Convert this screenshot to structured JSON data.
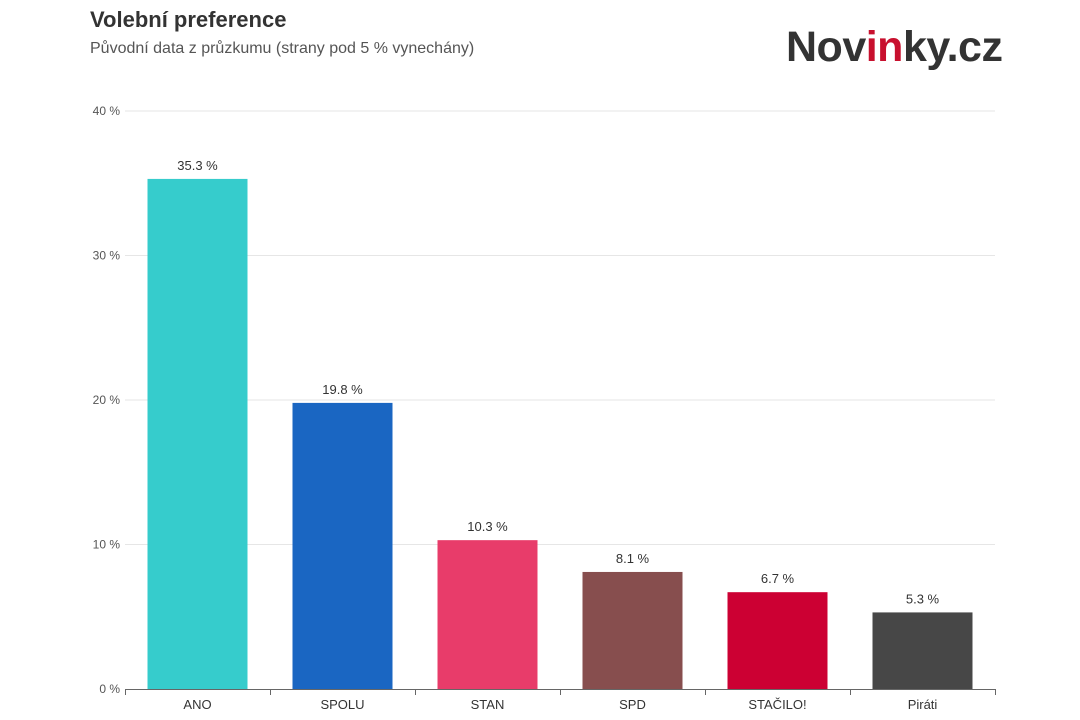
{
  "header": {
    "title": "Volební preference",
    "subtitle": "Původní data z průzkumu (strany pod 5 % vynechány)"
  },
  "logo": {
    "part1": "Nov",
    "part2": "in",
    "part3": "ky.cz",
    "dark_color": "#333333",
    "accent_color": "#c8102e"
  },
  "chart_data": {
    "type": "bar",
    "title": "Volební preference",
    "subtitle": "Původní data z průzkumu (strany pod 5 % vynechány)",
    "xlabel": "",
    "ylabel": "",
    "categories": [
      "ANO",
      "SPOLU",
      "STAN",
      "SPD",
      "STAČILO!",
      "Piráti"
    ],
    "values": [
      35.3,
      19.8,
      10.3,
      8.1,
      6.7,
      5.3
    ],
    "data_labels": [
      "35.3 %",
      "19.8 %",
      "10.3 %",
      "8.1 %",
      "6.7 %",
      "5.3 %"
    ],
    "colors": [
      "#36cccc",
      "#1a66c2",
      "#e83c6a",
      "#874e4e",
      "#cc0033",
      "#474747"
    ],
    "ylim": [
      0,
      40
    ],
    "yticks": [
      0,
      10,
      20,
      30,
      40
    ],
    "ytick_labels": [
      "0 %",
      "10 %",
      "20 %",
      "30 %",
      "40 %"
    ],
    "grid": true,
    "legend": "none"
  }
}
